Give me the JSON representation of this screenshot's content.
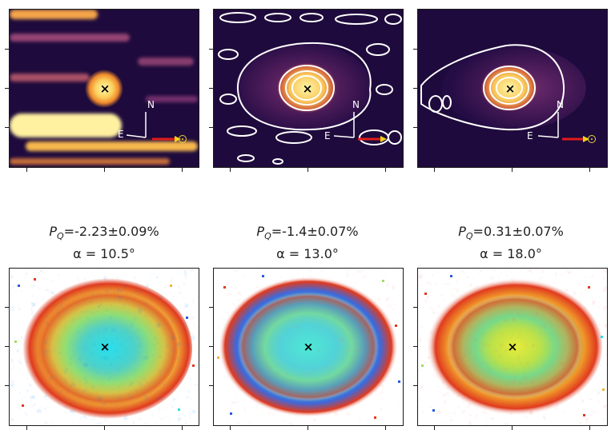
{
  "figure": {
    "top_row": {
      "panels": [
        {
          "compass": {
            "north": "N",
            "east": "E"
          },
          "marker": "×"
        },
        {
          "compass": {
            "north": "N",
            "east": "E"
          },
          "marker": "×"
        },
        {
          "compass": {
            "north": "N",
            "east": "E"
          },
          "marker": "×"
        }
      ]
    },
    "bottom_row": {
      "panels": [
        {
          "pq_symbol": "P",
          "pq_subscript": "Q",
          "pq_value": "=-2.23±0.09%",
          "alpha": "α = 10.5°",
          "marker": "×"
        },
        {
          "pq_symbol": "P",
          "pq_subscript": "Q",
          "pq_value": "=-1.4±0.07%",
          "alpha": "α = 13.0°",
          "marker": "×"
        },
        {
          "pq_symbol": "P",
          "pq_subscript": "Q",
          "pq_value": "=0.31±0.07%",
          "alpha": "α = 18.0°",
          "marker": "×"
        }
      ]
    },
    "colors": {
      "image_background": "#1e0a3c",
      "contour": "#ffffff",
      "core": "#fff6a8",
      "arrow_red": "#e21b1b",
      "arrow_yellow": "#f4d21c"
    }
  }
}
